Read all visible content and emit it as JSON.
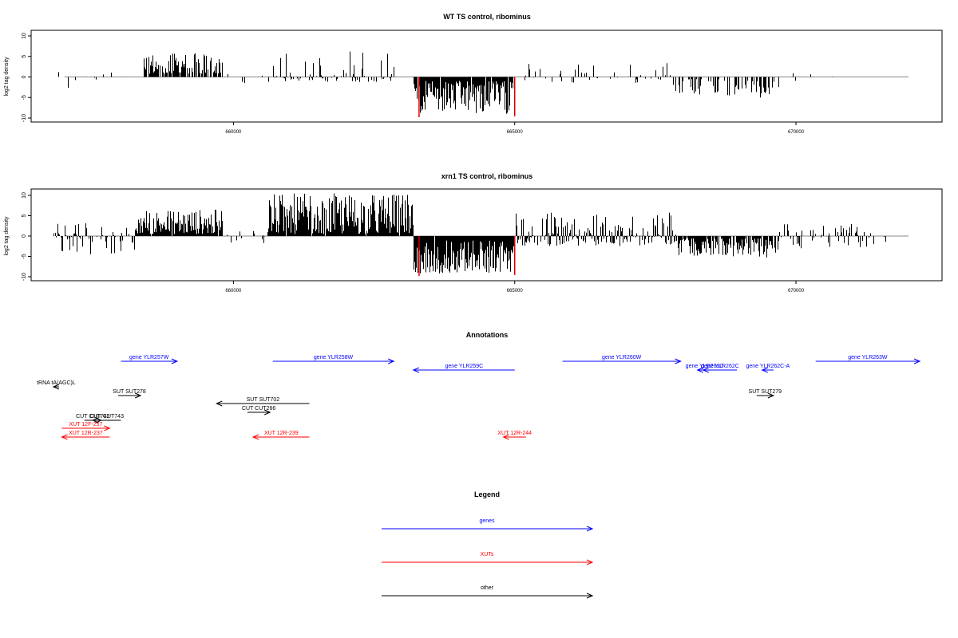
{
  "chart_data": [
    {
      "type": "bar",
      "title": "WT TS control, ribominus",
      "xlabel": "",
      "ylabel": "log2 tag density",
      "xlim": [
        656500,
        672200
      ],
      "ylim": [
        -10,
        10
      ],
      "y_ticks": [
        -10,
        -5,
        0,
        5,
        10
      ],
      "x_ticks": [
        660000,
        665000,
        670000
      ],
      "x_tick_labels": [
        "660000",
        "665000",
        "670000"
      ],
      "y_tick_labels": [
        "-10",
        "-5",
        "0",
        "5",
        "10"
      ],
      "colors": {
        "bars": "#000000",
        "highlight": "#dd0000",
        "baseline": "#888888"
      },
      "regions": [
        {
          "from": 656800,
          "to": 658100,
          "density": 0.18,
          "min": -4.2,
          "max": 2.0
        },
        {
          "from": 658400,
          "to": 659800,
          "density": 0.75,
          "min": 0.8,
          "max": 5.8
        },
        {
          "from": 659800,
          "to": 660700,
          "density": 0.08,
          "min": -1.5,
          "max": 1.0
        },
        {
          "from": 660700,
          "to": 662900,
          "density": 0.55,
          "min": -1.2,
          "max": 6.2
        },
        {
          "from": 663200,
          "to": 665000,
          "density": 0.92,
          "min": -9.0,
          "max": -1.0
        },
        {
          "from": 665000,
          "to": 667800,
          "density": 0.25,
          "min": -1.5,
          "max": 3.5
        },
        {
          "from": 667800,
          "to": 669300,
          "density": 0.32,
          "min": -4.5,
          "max": -0.5
        },
        {
          "from": 669300,
          "to": 669700,
          "density": 0.6,
          "min": -5.0,
          "max": -0.8
        },
        {
          "from": 669700,
          "to": 670900,
          "density": 0.08,
          "min": -1.0,
          "max": 1.2
        }
      ],
      "highlights": [
        {
          "x": 663300,
          "value": -9.8
        },
        {
          "x": 665000,
          "value": -9.6
        }
      ]
    },
    {
      "type": "bar",
      "title": "xrn1 TS control, ribominus",
      "xlabel": "",
      "ylabel": "log2 tag density",
      "xlim": [
        656500,
        672200
      ],
      "ylim": [
        -10,
        10
      ],
      "y_ticks": [
        -10,
        -5,
        0,
        5,
        10
      ],
      "x_ticks": [
        660000,
        665000,
        670000
      ],
      "x_tick_labels": [
        "660000",
        "665000",
        "670000"
      ],
      "y_tick_labels": [
        "-10",
        "-5",
        "0",
        "5",
        "10"
      ],
      "colors": {
        "bars": "#000000",
        "highlight": "#dd0000",
        "baseline": "#888888"
      },
      "regions": [
        {
          "from": 656800,
          "to": 658300,
          "density": 0.55,
          "min": -4.5,
          "max": 3.2
        },
        {
          "from": 658300,
          "to": 659800,
          "density": 0.95,
          "min": 0.5,
          "max": 6.6
        },
        {
          "from": 659800,
          "to": 660600,
          "density": 0.3,
          "min": -2.0,
          "max": 1.5
        },
        {
          "from": 660600,
          "to": 663200,
          "density": 0.98,
          "min": 0.5,
          "max": 10.5
        },
        {
          "from": 663200,
          "to": 665000,
          "density": 0.98,
          "min": -9.2,
          "max": -1.0
        },
        {
          "from": 665000,
          "to": 667900,
          "density": 0.8,
          "min": -2.5,
          "max": 6.0
        },
        {
          "from": 667900,
          "to": 669200,
          "density": 0.8,
          "min": -5.0,
          "max": -0.5
        },
        {
          "from": 669200,
          "to": 669700,
          "density": 0.8,
          "min": -5.5,
          "max": -0.5
        },
        {
          "from": 669700,
          "to": 671600,
          "density": 0.45,
          "min": -3.0,
          "max": 3.0
        }
      ],
      "highlights": [
        {
          "x": 663300,
          "value": -9.8
        },
        {
          "x": 665000,
          "value": -9.6
        }
      ]
    }
  ],
  "annotations": {
    "title": "Annotations",
    "colors": {
      "gene": "#0000ff",
      "xut": "#ff0000",
      "other": "#000000"
    },
    "items": [
      {
        "label": "gene YLR257W",
        "kind": "gene",
        "from": 658000,
        "to": 659000,
        "row": 0,
        "strand": "+"
      },
      {
        "label": "gene YLR258W",
        "kind": "gene",
        "from": 660700,
        "to": 662850,
        "row": 0,
        "strand": "+"
      },
      {
        "label": "gene YLR259C",
        "kind": "gene",
        "from": 663200,
        "to": 665000,
        "row": 1,
        "strand": "-"
      },
      {
        "label": "gene YLR260W",
        "kind": "gene",
        "from": 665850,
        "to": 667950,
        "row": 0,
        "strand": "+"
      },
      {
        "label": "gene YLR261C",
        "kind": "gene",
        "from": 668250,
        "to": 668500,
        "row": 1,
        "strand": "-"
      },
      {
        "label": "gene YLR262C",
        "kind": "gene",
        "from": 668350,
        "to": 668950,
        "row": 1,
        "strand": "-"
      },
      {
        "label": "gene YLR262C-A",
        "kind": "gene",
        "from": 669400,
        "to": 669600,
        "row": 1,
        "strand": "-"
      },
      {
        "label": "gene YLR263W",
        "kind": "gene",
        "from": 670350,
        "to": 672200,
        "row": 0,
        "strand": "+"
      },
      {
        "label": "tRNA tA(AGC)L",
        "kind": "other",
        "from": 656800,
        "to": 656900,
        "row": 2,
        "strand": "-"
      },
      {
        "label": "SUT SUT278",
        "kind": "other",
        "from": 657950,
        "to": 658350,
        "row": 3,
        "strand": "+"
      },
      {
        "label": "SUT SUT702",
        "kind": "other",
        "from": 659700,
        "to": 661350,
        "row": 4,
        "strand": "-"
      },
      {
        "label": "CUT CUT266",
        "kind": "other",
        "from": 660250,
        "to": 660650,
        "row": 5,
        "strand": "+"
      },
      {
        "label": "SUT SUT279",
        "kind": "other",
        "from": 669300,
        "to": 669600,
        "row": 3,
        "strand": "+"
      },
      {
        "label": "CUT CUT743",
        "kind": "other",
        "from": 657500,
        "to": 658000,
        "row": 6,
        "strand": "-"
      },
      {
        "label": "CUT CUT742",
        "kind": "other",
        "from": 657350,
        "to": 657650,
        "row": 6,
        "strand": "+"
      },
      {
        "label": "XUT 12F-257",
        "kind": "xut",
        "from": 656950,
        "to": 657800,
        "row": 7,
        "strand": "+"
      },
      {
        "label": "XUT 12R-237",
        "kind": "xut",
        "from": 656950,
        "to": 657800,
        "row": 8,
        "strand": "-"
      },
      {
        "label": "XUT 12R-239",
        "kind": "xut",
        "from": 660350,
        "to": 661350,
        "row": 8,
        "strand": "-"
      },
      {
        "label": "XUT 12R-244",
        "kind": "xut",
        "from": 664800,
        "to": 665200,
        "row": 8,
        "strand": "-"
      }
    ]
  },
  "legend": {
    "title": "Legend",
    "items": [
      {
        "label": "genes",
        "kind": "gene"
      },
      {
        "label": "XUTs",
        "kind": "xut"
      },
      {
        "label": "other",
        "kind": "other"
      }
    ]
  }
}
